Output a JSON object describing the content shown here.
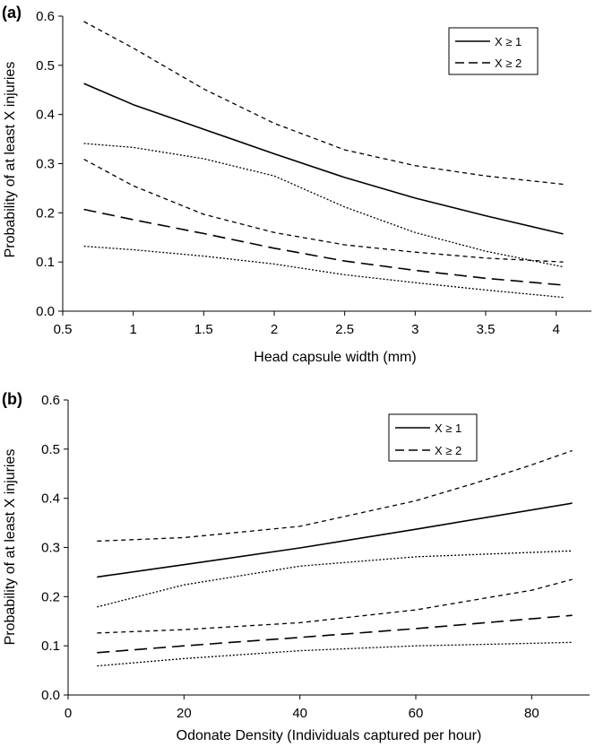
{
  "chart_data": [
    {
      "type": "line",
      "panel_label": "(a)",
      "xlabel": "Head capsule width (mm)",
      "ylabel": "Probability of at least X injuries",
      "xlim": [
        0.5,
        4.25
      ],
      "ylim": [
        0,
        0.6
      ],
      "xticks": [
        "0.5",
        "1",
        "1.5",
        "2",
        "2.5",
        "3",
        "3.5",
        "4"
      ],
      "yticks": [
        "0.0",
        "0.1",
        "0.2",
        "0.3",
        "0.4",
        "0.5",
        "0.6"
      ],
      "grid": false,
      "legend_position": "top-right",
      "legend": [
        {
          "label": "X ≥ 1",
          "style": "solid"
        },
        {
          "label": "X ≥ 2",
          "style": "dashed"
        }
      ],
      "series": [
        {
          "name": "X ≥ 1",
          "style": "solid",
          "x": [
            0.65,
            1.0,
            1.5,
            2.0,
            2.5,
            3.0,
            3.5,
            4.05
          ],
          "y": [
            0.463,
            0.42,
            0.37,
            0.32,
            0.272,
            0.23,
            0.194,
            0.157
          ]
        },
        {
          "style": "upper-ci",
          "of": "X ≥ 1",
          "x": [
            0.65,
            1.0,
            1.5,
            2.0,
            2.5,
            3.0,
            3.5,
            4.05
          ],
          "y": [
            0.589,
            0.535,
            0.452,
            0.382,
            0.328,
            0.296,
            0.275,
            0.258
          ]
        },
        {
          "style": "lower-ci",
          "of": "X ≥ 1",
          "x": [
            0.65,
            1.0,
            1.5,
            2.0,
            2.5,
            3.0,
            3.5,
            4.05
          ],
          "y": [
            0.341,
            0.333,
            0.31,
            0.275,
            0.212,
            0.16,
            0.122,
            0.09
          ]
        },
        {
          "name": "X ≥ 2",
          "style": "dashed",
          "x": [
            0.65,
            1.0,
            1.5,
            2.0,
            2.5,
            3.0,
            3.5,
            4.05
          ],
          "y": [
            0.207,
            0.186,
            0.158,
            0.128,
            0.102,
            0.083,
            0.067,
            0.053
          ]
        },
        {
          "style": "upper-ci",
          "of": "X ≥ 2",
          "x": [
            0.65,
            1.0,
            1.5,
            2.0,
            2.5,
            3.0,
            3.5,
            4.05
          ],
          "y": [
            0.309,
            0.255,
            0.197,
            0.16,
            0.135,
            0.12,
            0.108,
            0.1
          ]
        },
        {
          "style": "lower-ci",
          "of": "X ≥ 2",
          "x": [
            0.65,
            1.0,
            1.5,
            2.0,
            2.5,
            3.0,
            3.5,
            4.05
          ],
          "y": [
            0.132,
            0.125,
            0.112,
            0.096,
            0.074,
            0.058,
            0.043,
            0.028
          ]
        }
      ]
    },
    {
      "type": "line",
      "panel_label": "(b)",
      "xlabel": "Odonate Density (Individuals captured per hour)",
      "ylabel": "Probability of at least X injuries",
      "xlim": [
        0,
        90
      ],
      "ylim": [
        0,
        0.6
      ],
      "xticks": [
        "0",
        "20",
        "40",
        "60",
        "80"
      ],
      "yticks": [
        "0.0",
        "0.1",
        "0.2",
        "0.3",
        "0.4",
        "0.5",
        "0.6"
      ],
      "grid": false,
      "legend_position": "top-right",
      "legend": [
        {
          "label": "X ≥ 1",
          "style": "solid"
        },
        {
          "label": "X ≥ 2",
          "style": "dashed"
        }
      ],
      "series": [
        {
          "name": "X ≥ 1",
          "style": "solid",
          "x": [
            5,
            20,
            40,
            60,
            87
          ],
          "y": [
            0.24,
            0.265,
            0.299,
            0.337,
            0.39
          ]
        },
        {
          "style": "upper-ci",
          "of": "X ≥ 1",
          "x": [
            5,
            20,
            40,
            60,
            70,
            80,
            87
          ],
          "y": [
            0.313,
            0.32,
            0.343,
            0.395,
            0.43,
            0.468,
            0.497
          ]
        },
        {
          "style": "lower-ci",
          "of": "X ≥ 1",
          "x": [
            5,
            20,
            40,
            60,
            80,
            87
          ],
          "y": [
            0.179,
            0.224,
            0.262,
            0.281,
            0.29,
            0.293
          ]
        },
        {
          "name": "X ≥ 2",
          "style": "dashed",
          "x": [
            5,
            20,
            40,
            60,
            87
          ],
          "y": [
            0.086,
            0.1,
            0.117,
            0.135,
            0.162
          ]
        },
        {
          "style": "upper-ci",
          "of": "X ≥ 2",
          "x": [
            5,
            20,
            40,
            60,
            80,
            87
          ],
          "y": [
            0.126,
            0.133,
            0.147,
            0.173,
            0.213,
            0.235
          ]
        },
        {
          "style": "lower-ci",
          "of": "X ≥ 2",
          "x": [
            5,
            20,
            40,
            60,
            80,
            87
          ],
          "y": [
            0.059,
            0.074,
            0.09,
            0.1,
            0.105,
            0.107
          ]
        }
      ]
    }
  ]
}
